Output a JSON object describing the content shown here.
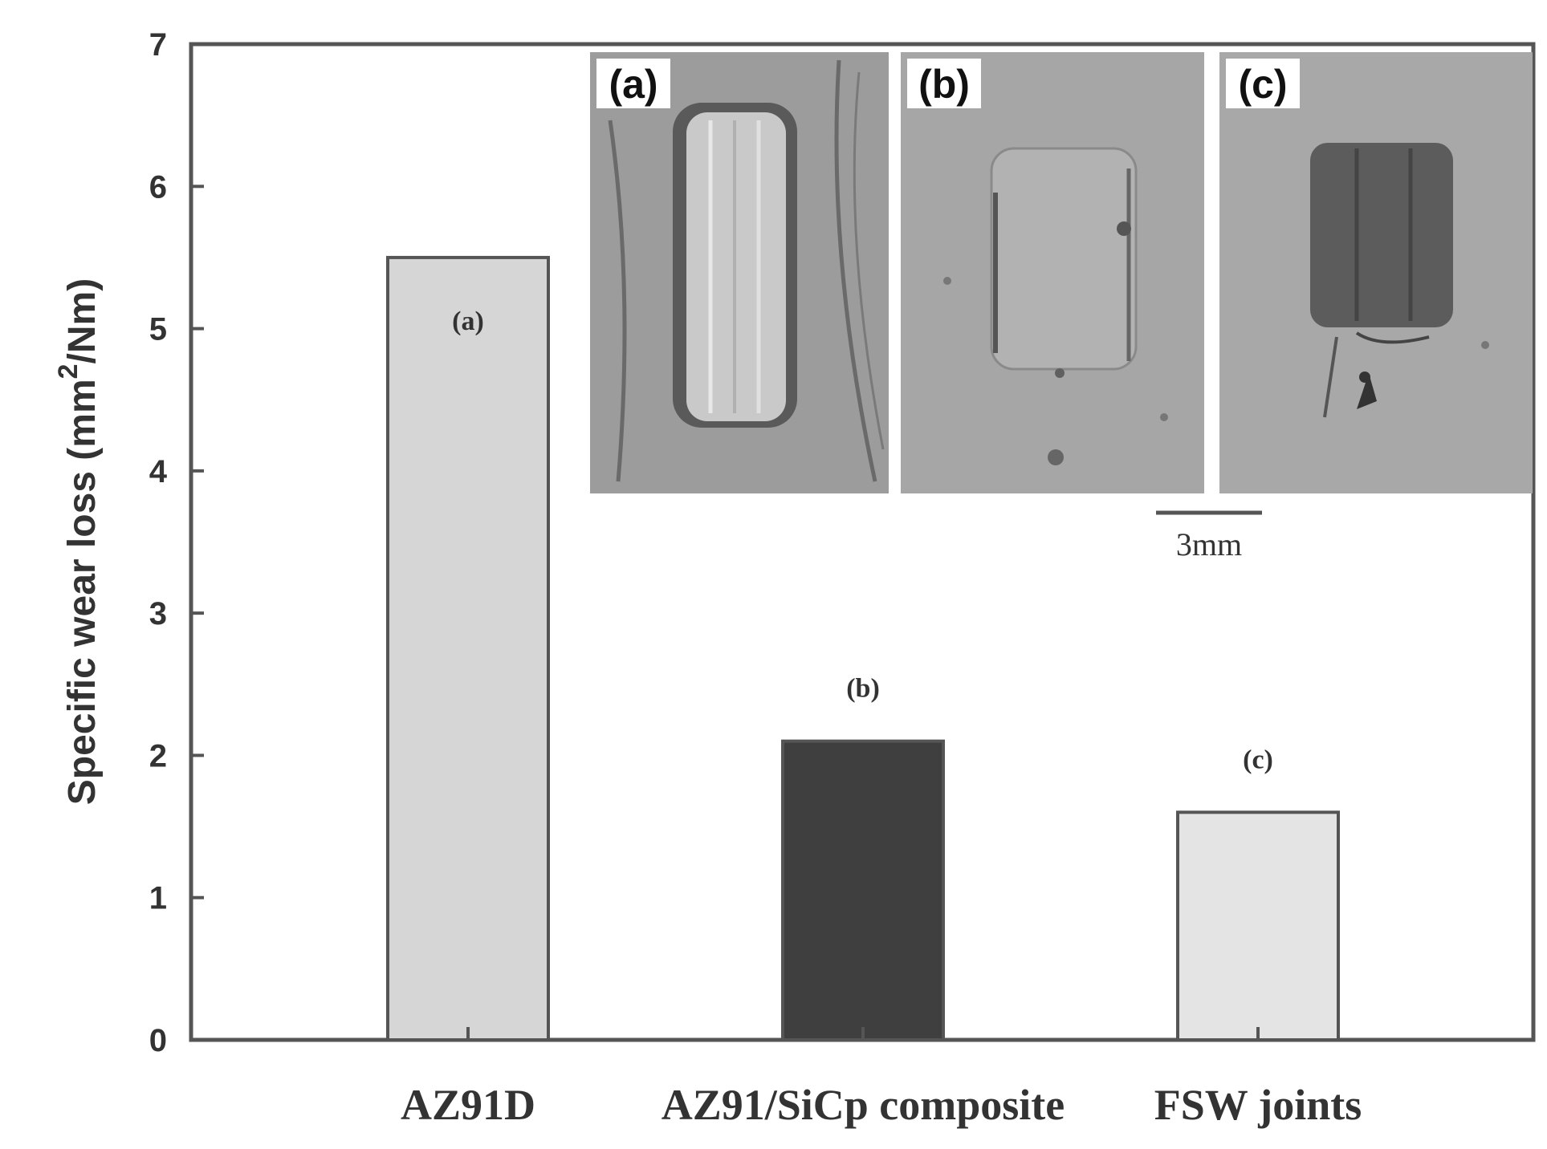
{
  "chart_data": {
    "type": "bar",
    "categories": [
      "AZ91D",
      "AZ91/SiCp composite",
      "FSW joints"
    ],
    "values": [
      5.5,
      2.1,
      1.6
    ],
    "bar_labels": [
      "(a)",
      "(b)",
      "(c)"
    ],
    "bar_colors": [
      "#d6d6d6",
      "#3f3f3f",
      "#e4e4e4"
    ],
    "ylabel": {
      "prefix": "Specific wear loss (mm",
      "superscript": "2",
      "suffix": "/Nm)"
    },
    "xlabel": "",
    "ylim": [
      0,
      7
    ],
    "yticks": [
      "0",
      "1",
      "2",
      "3",
      "4",
      "5",
      "6",
      "7"
    ],
    "grid": false,
    "legend": "none"
  },
  "inset": {
    "panels": [
      {
        "label": "(a)",
        "description_icon": "wear-track-photo-a"
      },
      {
        "label": "(b)",
        "description_icon": "wear-track-photo-b"
      },
      {
        "label": "(c)",
        "description_icon": "wear-track-photo-c"
      }
    ],
    "scale_bar_label": "3mm"
  },
  "colors": {
    "axis": "#555555",
    "photo_background": "#a8a8a8",
    "photo_dark": "#3a3a3a"
  }
}
